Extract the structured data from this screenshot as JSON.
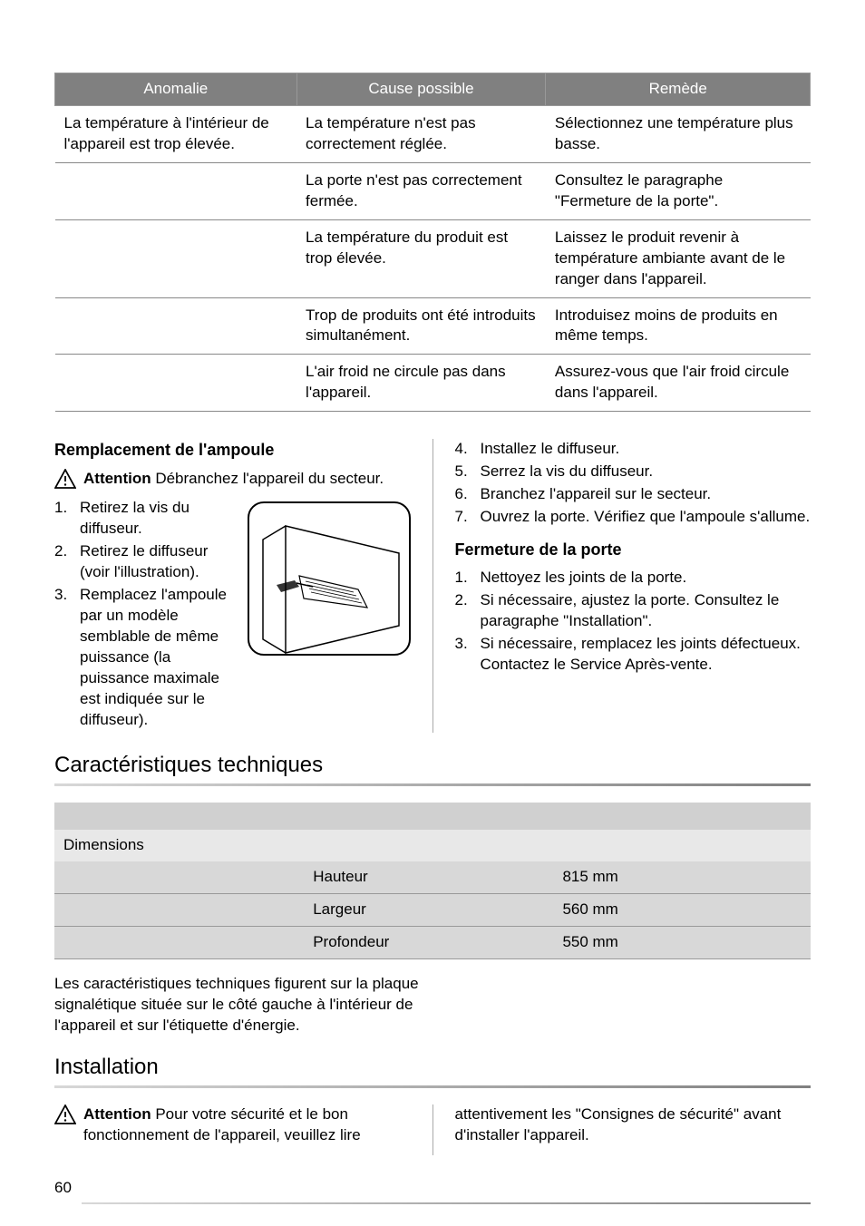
{
  "troubleshoot": {
    "headers": [
      "Anomalie",
      "Cause possible",
      "Remède"
    ],
    "rows": [
      {
        "anomalie": "La température à l'intérieur de l'appareil est trop élevée.",
        "cause": "La température n'est pas correctement réglée.",
        "remede": "Sélectionnez une température plus basse."
      },
      {
        "anomalie": "",
        "cause": "La porte n'est pas correctement fermée.",
        "remede": "Consultez le paragraphe \"Fermeture de la porte\"."
      },
      {
        "anomalie": "",
        "cause": "La température du produit est trop élevée.",
        "remede": "Laissez le produit revenir à température ambiante avant de le ranger dans l'appareil."
      },
      {
        "anomalie": "",
        "cause": "Trop de produits ont été introduits simultanément.",
        "remede": "Introduisez moins de produits en même temps."
      },
      {
        "anomalie": "",
        "cause": "L'air froid ne circule pas dans l'appareil.",
        "remede": "Assurez-vous que l'air froid circule dans l'appareil."
      }
    ]
  },
  "bulb": {
    "heading": "Remplacement de l'ampoule",
    "attention_label": "Attention",
    "attention_text": "Débranchez l'appareil du secteur.",
    "steps_left": [
      "Retirez la vis du diffuseur.",
      "Retirez le diffuseur (voir l'illustration).",
      "Remplacez l'ampoule par un modèle semblable de même puissance (la puissance maximale est indiquée sur le diffuseur)."
    ],
    "steps_right": [
      "Installez le diffuseur.",
      "Serrez la vis du diffuseur.",
      "Branchez l'appareil sur le secteur.",
      "Ouvrez la porte. Vérifiez que l'ampoule s'allume."
    ],
    "right_start": 4
  },
  "door": {
    "heading": "Fermeture de la porte",
    "steps": [
      "Nettoyez les joints de la porte.",
      "Si nécessaire, ajustez la porte. Consultez le paragraphe \"Installation\".",
      "Si nécessaire, remplacez les joints défectueux. Contactez le Service Après-vente."
    ]
  },
  "specs": {
    "heading": "Caractéristiques techniques",
    "dimensions_label": "Dimensions",
    "rows": [
      {
        "label": "Hauteur",
        "value": "815 mm"
      },
      {
        "label": "Largeur",
        "value": "560 mm"
      },
      {
        "label": "Profondeur",
        "value": "550 mm"
      }
    ],
    "note": "Les caractéristiques techniques figurent sur la plaque signalétique située sur le côté gauche à l'intérieur de l'appareil et sur l'étiquette d'énergie."
  },
  "installation": {
    "heading": "Installation",
    "attention_label": "Attention",
    "left_text": "Pour votre sécurité et le bon fonctionnement de l'appareil, veuillez lire",
    "right_text": "attentivement les \"Consignes de sécurité\" avant d'installer l'appareil."
  },
  "page_number": "60",
  "colors": {
    "table_header_bg": "#808080",
    "table_header_fg": "#ffffff",
    "spec_light": "#e8e8e8",
    "spec_med": "#d8d8d8",
    "spec_header": "#d0d0d0"
  }
}
